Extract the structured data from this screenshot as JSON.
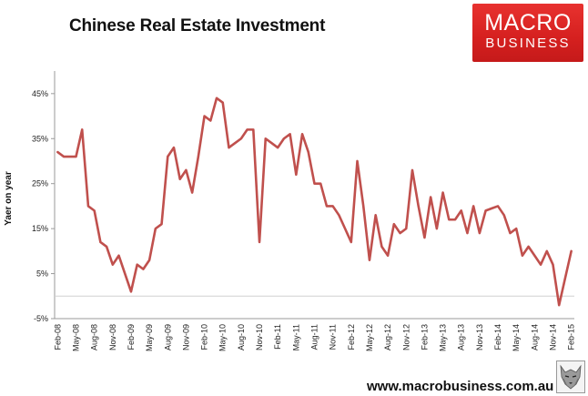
{
  "header": {
    "title": "Chinese Real Estate Investment"
  },
  "logo": {
    "line1": "MACRO",
    "line2": "BUSINESS",
    "color": "#d9221f"
  },
  "footer": {
    "url": "www.macrobusiness.com.au",
    "mascot_icon": "wolf-icon"
  },
  "chart_data": {
    "type": "line",
    "title": "Chinese Real Estate Investment",
    "xlabel": "",
    "ylabel": "Yaer on year",
    "ylim": [
      -5,
      48
    ],
    "y_ticks": [
      -5,
      5,
      15,
      25,
      35,
      45
    ],
    "y_tick_labels": [
      "-5%",
      "5%",
      "15%",
      "25%",
      "35%",
      "45%"
    ],
    "x_tick_labels": [
      "Feb-08",
      "May-08",
      "Aug-08",
      "Nov-08",
      "Feb-09",
      "May-09",
      "Aug-09",
      "Nov-09",
      "Feb-10",
      "May-10",
      "Aug-10",
      "Nov-10",
      "Feb-11",
      "May-11",
      "Aug-11",
      "Nov-11",
      "Feb-12",
      "May-12",
      "Aug-12",
      "Nov-12",
      "Feb-13",
      "May-13",
      "Aug-13",
      "Nov-13",
      "Feb-14",
      "May-14",
      "Aug-14",
      "Nov-14",
      "Feb-15"
    ],
    "grid": false,
    "zero_line": true,
    "line_color": "#c0504d",
    "series": [
      {
        "x": [
          "Feb-08",
          "Mar-08",
          "Apr-08",
          "May-08",
          "Jun-08",
          "Jul-08",
          "Aug-08",
          "Sep-08",
          "Oct-08",
          "Nov-08",
          "Dec-08",
          "Jan-09",
          "Feb-09",
          "Mar-09",
          "Apr-09",
          "May-09",
          "Jun-09",
          "Jul-09",
          "Aug-09",
          "Sep-09",
          "Oct-09",
          "Nov-09",
          "Dec-09",
          "Jan-10",
          "Feb-10",
          "Mar-10",
          "Apr-10",
          "May-10",
          "Jun-10",
          "Jul-10",
          "Aug-10",
          "Sep-10",
          "Oct-10",
          "Nov-10",
          "Dec-10",
          "Jan-11",
          "Feb-11",
          "Mar-11",
          "Apr-11",
          "May-11",
          "Jun-11",
          "Jul-11",
          "Aug-11",
          "Sep-11",
          "Oct-11",
          "Nov-11",
          "Dec-11",
          "Jan-12",
          "Feb-12",
          "Mar-12",
          "Apr-12",
          "May-12",
          "Jun-12",
          "Jul-12",
          "Aug-12",
          "Sep-12",
          "Oct-12",
          "Nov-12",
          "Dec-12",
          "Jan-13",
          "Feb-13",
          "Mar-13",
          "Apr-13",
          "May-13",
          "Jun-13",
          "Jul-13",
          "Aug-13",
          "Sep-13",
          "Oct-13",
          "Nov-13",
          "Dec-13",
          "Jan-14",
          "Feb-14",
          "Mar-14",
          "Apr-14",
          "May-14",
          "Jun-14",
          "Jul-14",
          "Aug-14",
          "Sep-14",
          "Oct-14",
          "Nov-14",
          "Dec-14",
          "Jan-15",
          "Feb-15"
        ],
        "values": [
          32,
          31,
          31,
          31,
          37,
          20,
          19,
          12,
          11,
          7,
          9,
          5,
          1,
          7,
          6,
          8,
          15,
          16,
          31,
          33,
          26,
          28,
          23,
          31,
          40,
          39,
          44,
          43,
          33,
          34,
          35,
          37,
          37,
          12,
          35,
          34,
          33,
          35,
          36,
          27,
          36,
          32,
          25,
          25,
          20,
          20,
          18,
          15,
          12,
          30,
          20,
          8,
          18,
          11,
          9,
          16,
          14,
          15,
          28,
          20,
          13,
          22,
          15,
          23,
          17,
          17,
          19,
          14,
          20,
          14,
          19,
          19.5,
          20,
          18,
          14,
          15,
          9,
          11,
          9,
          7,
          10,
          7,
          -2,
          4,
          10
        ]
      }
    ]
  }
}
